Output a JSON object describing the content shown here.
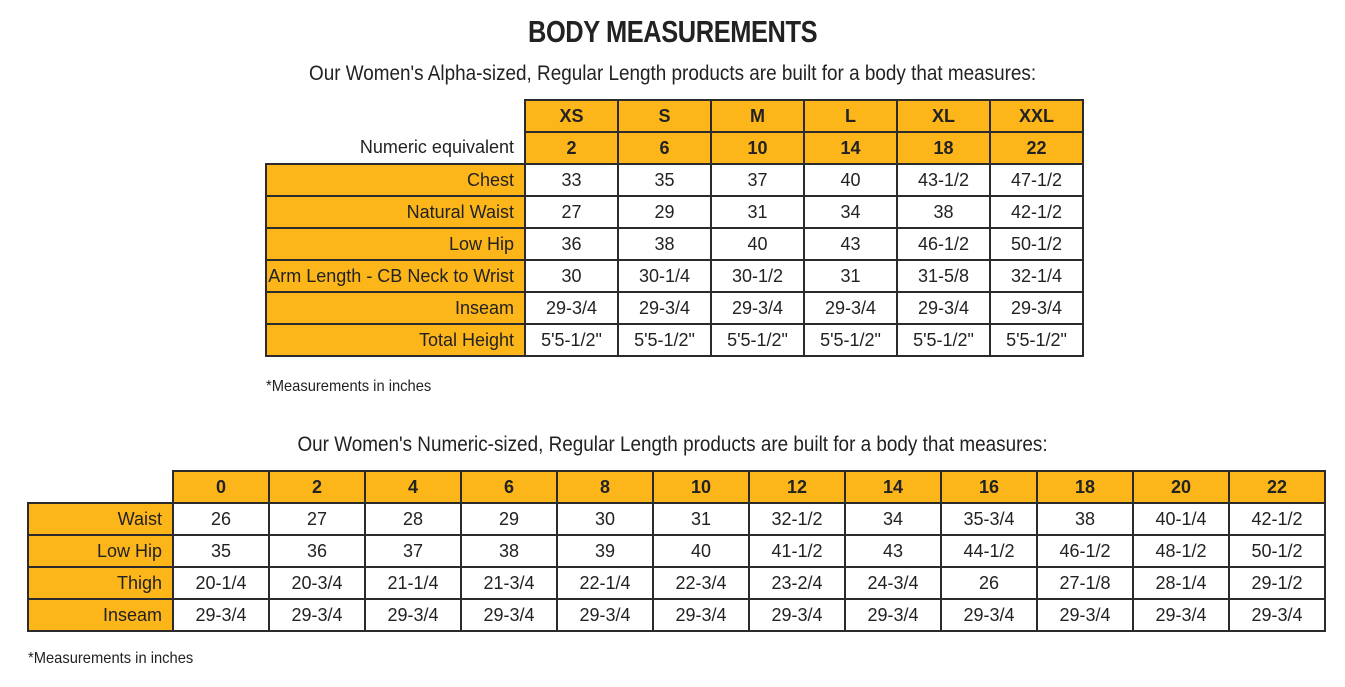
{
  "title": "BODY MEASUREMENTS",
  "alpha": {
    "subtitle": "Our Women's Alpha-sized, Regular Length products are built for a body that measures:",
    "sizes": [
      "XS",
      "S",
      "M",
      "L",
      "XL",
      "XXL"
    ],
    "numeric_label": "Numeric equivalent",
    "numeric": [
      "2",
      "6",
      "10",
      "14",
      "18",
      "22"
    ],
    "rows": [
      {
        "label": "Chest",
        "values": [
          "33",
          "35",
          "37",
          "40",
          "43-1/2",
          "47-1/2"
        ]
      },
      {
        "label": "Natural Waist",
        "values": [
          "27",
          "29",
          "31",
          "34",
          "38",
          "42-1/2"
        ]
      },
      {
        "label": "Low Hip",
        "values": [
          "36",
          "38",
          "40",
          "43",
          "46-1/2",
          "50-1/2"
        ]
      },
      {
        "label": "Arm Length - CB Neck to Wrist",
        "values": [
          "30",
          "30-1/4",
          "30-1/2",
          "31",
          "31-5/8",
          "32-1/4"
        ]
      },
      {
        "label": "Inseam",
        "values": [
          "29-3/4",
          "29-3/4",
          "29-3/4",
          "29-3/4",
          "29-3/4",
          "29-3/4"
        ]
      },
      {
        "label": "Total Height",
        "values": [
          "5'5-1/2\"",
          "5'5-1/2\"",
          "5'5-1/2\"",
          "5'5-1/2\"",
          "5'5-1/2\"",
          "5'5-1/2\""
        ]
      }
    ],
    "note": "*Measurements in inches"
  },
  "numeric": {
    "subtitle": "Our Women's Numeric-sized, Regular Length products are built for a body that measures:",
    "sizes": [
      "0",
      "2",
      "4",
      "6",
      "8",
      "10",
      "12",
      "14",
      "16",
      "18",
      "20",
      "22"
    ],
    "rows": [
      {
        "label": "Waist",
        "values": [
          "26",
          "27",
          "28",
          "29",
          "30",
          "31",
          "32-1/2",
          "34",
          "35-3/4",
          "38",
          "40-1/4",
          "42-1/2"
        ]
      },
      {
        "label": "Low Hip",
        "values": [
          "35",
          "36",
          "37",
          "38",
          "39",
          "40",
          "41-1/2",
          "43",
          "44-1/2",
          "46-1/2",
          "48-1/2",
          "50-1/2"
        ]
      },
      {
        "label": "Thigh",
        "values": [
          "20-1/4",
          "20-3/4",
          "21-1/4",
          "21-3/4",
          "22-1/4",
          "22-3/4",
          "23-2/4",
          "24-3/4",
          "26",
          "27-1/8",
          "28-1/4",
          "29-1/2"
        ]
      },
      {
        "label": "Inseam",
        "values": [
          "29-3/4",
          "29-3/4",
          "29-3/4",
          "29-3/4",
          "29-3/4",
          "29-3/4",
          "29-3/4",
          "29-3/4",
          "29-3/4",
          "29-3/4",
          "29-3/4",
          "29-3/4"
        ]
      }
    ],
    "note": "*Measurements in inches"
  }
}
